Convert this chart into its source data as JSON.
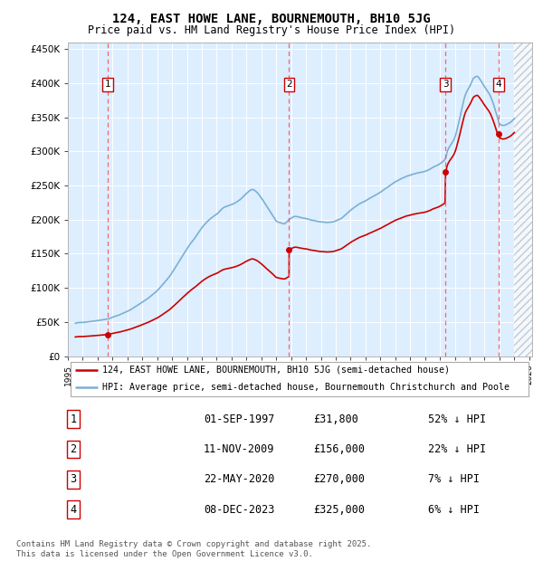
{
  "title": "124, EAST HOWE LANE, BOURNEMOUTH, BH10 5JG",
  "subtitle": "Price paid vs. HM Land Registry's House Price Index (HPI)",
  "background_color": "#ffffff",
  "plot_bg_color": "#ddeeff",
  "grid_color": "#ffffff",
  "ylim": [
    0,
    460000
  ],
  "yticks": [
    0,
    50000,
    100000,
    150000,
    200000,
    250000,
    300000,
    350000,
    400000,
    450000
  ],
  "ytick_labels": [
    "£0",
    "£50K",
    "£100K",
    "£150K",
    "£200K",
    "£250K",
    "£300K",
    "£350K",
    "£400K",
    "£450K"
  ],
  "xmin_year": 1995.5,
  "xmax_year": 2026.2,
  "xtick_years": [
    1995,
    1996,
    1997,
    1998,
    1999,
    2000,
    2001,
    2002,
    2003,
    2004,
    2005,
    2006,
    2007,
    2008,
    2009,
    2010,
    2011,
    2012,
    2013,
    2014,
    2015,
    2016,
    2017,
    2018,
    2019,
    2020,
    2021,
    2022,
    2023,
    2024,
    2025,
    2026
  ],
  "hpi_line_color": "#7ab0d4",
  "price_line_color": "#cc0000",
  "sale_dot_color": "#cc0000",
  "dashed_vline_color": "#ff5555",
  "sale_events": [
    {
      "label": "1",
      "year": 1997.67,
      "price": 31800
    },
    {
      "label": "2",
      "year": 2009.87,
      "price": 156000
    },
    {
      "label": "3",
      "year": 2020.38,
      "price": 270000
    },
    {
      "label": "4",
      "year": 2023.93,
      "price": 325000
    }
  ],
  "table_rows": [
    {
      "num": "1",
      "date": "01-SEP-1997",
      "price": "£31,800",
      "hpi": "52% ↓ HPI"
    },
    {
      "num": "2",
      "date": "11-NOV-2009",
      "price": "£156,000",
      "hpi": "22% ↓ HPI"
    },
    {
      "num": "3",
      "date": "22-MAY-2020",
      "price": "£270,000",
      "hpi": "7% ↓ HPI"
    },
    {
      "num": "4",
      "date": "08-DEC-2023",
      "price": "£325,000",
      "hpi": "6% ↓ HPI"
    }
  ],
  "legend_entries": [
    {
      "label": "124, EAST HOWE LANE, BOURNEMOUTH, BH10 5JG (semi-detached house)",
      "color": "#cc0000"
    },
    {
      "label": "HPI: Average price, semi-detached house, Bournemouth Christchurch and Poole",
      "color": "#7ab0d4"
    }
  ],
  "footnote": "Contains HM Land Registry data © Crown copyright and database right 2025.\nThis data is licensed under the Open Government Licence v3.0.",
  "hatch_start": 2025.0
}
